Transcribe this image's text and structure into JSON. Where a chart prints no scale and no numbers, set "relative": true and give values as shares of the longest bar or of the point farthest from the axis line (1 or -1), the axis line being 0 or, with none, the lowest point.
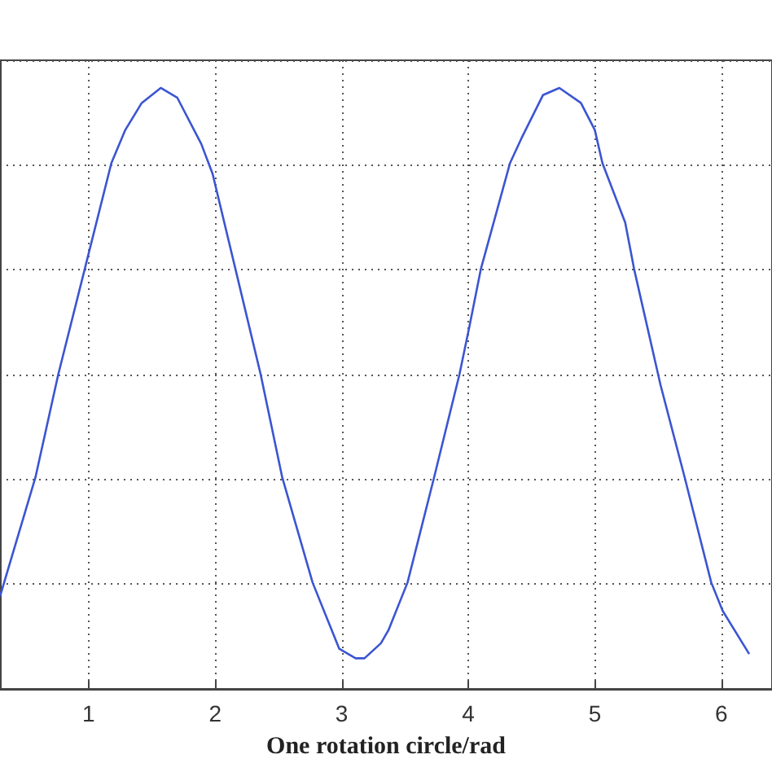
{
  "chart_data": {
    "type": "line",
    "xlabel": "One rotation circle/rad",
    "relative": true,
    "tick_labels": "x",
    "grid": true,
    "marker": "none",
    "line_style": "solid",
    "xlim": [
      0.3,
      6.4
    ],
    "xticks": [
      1,
      2,
      3,
      4,
      5,
      6
    ],
    "series": [
      {
        "color": "#3b55d1",
        "x": [
          0.3,
          0.58,
          0.76,
          0.97,
          1.18,
          1.29,
          1.42,
          1.57,
          1.7,
          1.89,
          1.98,
          2.16,
          2.36,
          2.53,
          2.77,
          2.98,
          3.11,
          3.18,
          3.31,
          3.37,
          3.52,
          3.73,
          3.93,
          4.01,
          4.1,
          4.33,
          4.42,
          4.59,
          4.72,
          4.89,
          5.0,
          5.06,
          5.24,
          5.31,
          5.52,
          5.71,
          5.92,
          6.01,
          6.22
        ],
        "values": [
          0.154,
          0.352,
          0.523,
          0.699,
          0.875,
          0.93,
          0.975,
          1.0,
          0.984,
          0.907,
          0.857,
          0.699,
          0.523,
          0.352,
          0.177,
          0.067,
          0.051,
          0.051,
          0.076,
          0.098,
          0.177,
          0.352,
          0.523,
          0.604,
          0.699,
          0.875,
          0.916,
          0.988,
          1.0,
          0.975,
          0.93,
          0.875,
          0.776,
          0.699,
          0.505,
          0.352,
          0.177,
          0.13,
          0.058
        ]
      }
    ]
  }
}
